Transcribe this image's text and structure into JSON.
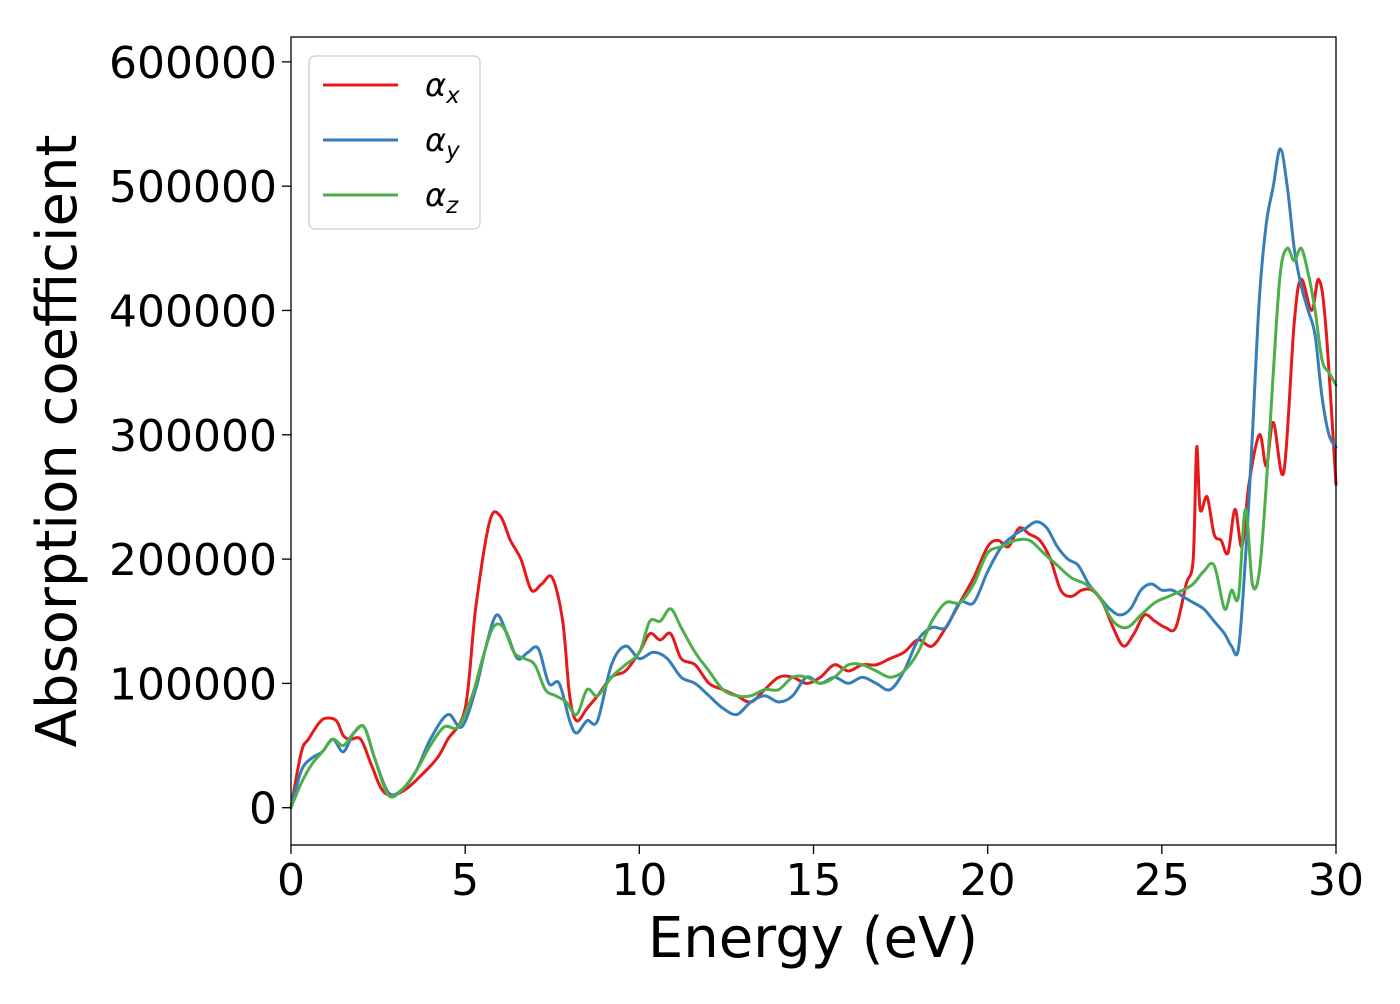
{
  "chart_data": {
    "type": "line",
    "title": "",
    "xlabel": "Energy (eV)",
    "ylabel": "Absorption coefficient",
    "xlim": [
      0,
      30
    ],
    "ylim": [
      -30000,
      620000
    ],
    "xticks": [
      0,
      5,
      10,
      15,
      20,
      25,
      30
    ],
    "yticks": [
      0,
      100000,
      200000,
      300000,
      400000,
      500000,
      600000
    ],
    "xtick_labels": [
      "0",
      "5",
      "10",
      "15",
      "20",
      "25",
      "30"
    ],
    "ytick_labels": [
      "0",
      "100000",
      "200000",
      "300000",
      "400000",
      "500000",
      "600000"
    ],
    "grid": false,
    "legend_position": "top-left",
    "series": [
      {
        "name": "αx",
        "symbol": "α",
        "subscript": "x",
        "color": "#e41a1c",
        "x": [
          0,
          0.3,
          0.5,
          0.8,
          1.0,
          1.3,
          1.5,
          1.7,
          2.0,
          2.3,
          2.6,
          2.9,
          3.3,
          3.7,
          4.2,
          4.5,
          5.0,
          5.3,
          5.7,
          6.0,
          6.3,
          6.6,
          6.9,
          7.2,
          7.5,
          7.8,
          8.0,
          8.2,
          8.5,
          8.8,
          9.2,
          9.6,
          10.0,
          10.3,
          10.6,
          10.9,
          11.2,
          11.6,
          12.0,
          12.4,
          12.8,
          13.2,
          13.6,
          14.0,
          14.4,
          14.8,
          15.2,
          15.6,
          16.0,
          16.4,
          16.8,
          17.2,
          17.6,
          18.0,
          18.4,
          18.8,
          19.2,
          19.6,
          20.0,
          20.3,
          20.6,
          20.9,
          21.2,
          21.5,
          21.8,
          22.1,
          22.4,
          22.7,
          23.0,
          23.3,
          23.6,
          23.9,
          24.2,
          24.5,
          24.8,
          25.1,
          25.4,
          25.7,
          25.9,
          26.0,
          26.1,
          26.3,
          26.5,
          26.7,
          26.9,
          27.1,
          27.3,
          27.5,
          27.8,
          28.0,
          28.2,
          28.5,
          28.8,
          29.0,
          29.3,
          29.5,
          29.7,
          30.0
        ],
        "y": [
          0,
          45000,
          55000,
          68000,
          72000,
          70000,
          58000,
          55000,
          55000,
          35000,
          15000,
          10000,
          15000,
          25000,
          40000,
          55000,
          80000,
          160000,
          230000,
          235000,
          215000,
          200000,
          175000,
          180000,
          185000,
          150000,
          90000,
          70000,
          80000,
          90000,
          105000,
          110000,
          125000,
          140000,
          135000,
          140000,
          120000,
          115000,
          100000,
          95000,
          90000,
          85000,
          95000,
          105000,
          105000,
          100000,
          105000,
          115000,
          110000,
          115000,
          115000,
          120000,
          125000,
          135000,
          130000,
          145000,
          165000,
          185000,
          210000,
          215000,
          210000,
          225000,
          220000,
          215000,
          200000,
          175000,
          170000,
          175000,
          175000,
          165000,
          145000,
          130000,
          140000,
          155000,
          150000,
          145000,
          145000,
          180000,
          200000,
          290000,
          240000,
          250000,
          220000,
          215000,
          205000,
          240000,
          210000,
          260000,
          300000,
          275000,
          310000,
          270000,
          390000,
          425000,
          400000,
          425000,
          390000,
          260000
        ]
      },
      {
        "name": "αy",
        "symbol": "α",
        "subscript": "y",
        "color": "#377eb8",
        "x": [
          0,
          0.3,
          0.6,
          0.9,
          1.2,
          1.5,
          1.8,
          2.1,
          2.4,
          2.8,
          3.2,
          3.6,
          4.0,
          4.5,
          4.9,
          5.3,
          5.6,
          5.9,
          6.2,
          6.5,
          6.8,
          7.1,
          7.4,
          7.7,
          8.0,
          8.2,
          8.5,
          8.8,
          9.2,
          9.6,
          10.0,
          10.4,
          10.8,
          11.2,
          11.6,
          12.0,
          12.4,
          12.8,
          13.2,
          13.6,
          14.0,
          14.4,
          14.8,
          15.2,
          15.6,
          16.0,
          16.4,
          16.8,
          17.2,
          17.6,
          18.0,
          18.4,
          18.8,
          19.2,
          19.6,
          20.0,
          20.4,
          20.8,
          21.1,
          21.4,
          21.7,
          22.0,
          22.3,
          22.6,
          22.9,
          23.2,
          23.5,
          23.8,
          24.1,
          24.4,
          24.7,
          25.0,
          25.3,
          25.6,
          25.9,
          26.2,
          26.5,
          26.8,
          27.0,
          27.2,
          27.4,
          27.6,
          27.8,
          28.0,
          28.2,
          28.4,
          28.6,
          28.8,
          29.0,
          29.2,
          29.4,
          29.6,
          29.8,
          30.0
        ],
        "y": [
          0,
          30000,
          40000,
          45000,
          55000,
          45000,
          60000,
          65000,
          40000,
          12000,
          15000,
          30000,
          55000,
          75000,
          65000,
          95000,
          130000,
          155000,
          140000,
          120000,
          125000,
          128000,
          100000,
          100000,
          70000,
          60000,
          70000,
          70000,
          115000,
          130000,
          120000,
          125000,
          120000,
          105000,
          100000,
          90000,
          80000,
          75000,
          85000,
          90000,
          85000,
          90000,
          105000,
          100000,
          105000,
          100000,
          105000,
          100000,
          95000,
          110000,
          135000,
          145000,
          145000,
          165000,
          165000,
          190000,
          210000,
          220000,
          225000,
          230000,
          225000,
          210000,
          200000,
          195000,
          180000,
          170000,
          160000,
          155000,
          160000,
          175000,
          180000,
          175000,
          175000,
          170000,
          165000,
          160000,
          150000,
          140000,
          130000,
          128000,
          200000,
          300000,
          410000,
          470000,
          500000,
          530000,
          500000,
          450000,
          420000,
          400000,
          380000,
          330000,
          300000,
          290000
        ]
      },
      {
        "name": "αz",
        "symbol": "α",
        "subscript": "z",
        "color": "#4daf4a",
        "x": [
          0,
          0.3,
          0.6,
          0.9,
          1.2,
          1.5,
          1.8,
          2.1,
          2.4,
          2.8,
          3.2,
          3.6,
          4.0,
          4.4,
          4.8,
          5.2,
          5.5,
          5.8,
          6.1,
          6.4,
          6.7,
          7.0,
          7.3,
          7.6,
          7.9,
          8.2,
          8.5,
          8.8,
          9.2,
          9.6,
          10.0,
          10.3,
          10.6,
          10.9,
          11.2,
          11.6,
          12.0,
          12.4,
          12.8,
          13.2,
          13.6,
          14.0,
          14.4,
          14.8,
          15.2,
          15.6,
          16.0,
          16.4,
          16.8,
          17.2,
          17.6,
          18.0,
          18.4,
          18.8,
          19.2,
          19.6,
          20.0,
          20.4,
          20.8,
          21.2,
          21.6,
          22.0,
          22.4,
          22.8,
          23.2,
          23.6,
          24.0,
          24.4,
          24.8,
          25.2,
          25.6,
          25.9,
          26.2,
          26.5,
          26.8,
          27.0,
          27.2,
          27.4,
          27.6,
          27.8,
          28.0,
          28.2,
          28.4,
          28.6,
          28.8,
          29.0,
          29.2,
          29.4,
          29.6,
          29.8,
          30.0
        ],
        "y": [
          0,
          20000,
          35000,
          45000,
          55000,
          50000,
          60000,
          65000,
          40000,
          10000,
          15000,
          30000,
          50000,
          65000,
          65000,
          90000,
          120000,
          145000,
          145000,
          125000,
          120000,
          115000,
          95000,
          90000,
          85000,
          75000,
          95000,
          90000,
          105000,
          115000,
          125000,
          150000,
          150000,
          160000,
          145000,
          125000,
          110000,
          95000,
          90000,
          90000,
          95000,
          95000,
          105000,
          105000,
          100000,
          105000,
          115000,
          115000,
          110000,
          105000,
          110000,
          125000,
          150000,
          165000,
          165000,
          180000,
          205000,
          210000,
          215000,
          215000,
          205000,
          195000,
          185000,
          180000,
          170000,
          150000,
          145000,
          155000,
          165000,
          170000,
          175000,
          180000,
          190000,
          195000,
          160000,
          175000,
          170000,
          240000,
          180000,
          190000,
          260000,
          350000,
          430000,
          450000,
          440000,
          450000,
          430000,
          400000,
          360000,
          350000,
          340000
        ]
      }
    ]
  }
}
